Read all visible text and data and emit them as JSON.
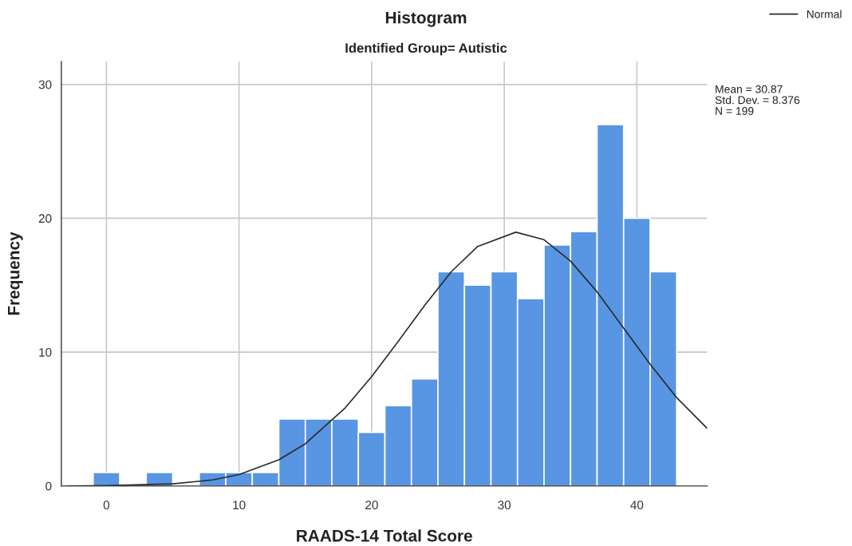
{
  "chart_data": {
    "type": "histogram",
    "title": "Histogram",
    "subtitle": "Identified Group= Autistic",
    "xlabel": "RAADS-14 Total Score",
    "ylabel": "Frequency",
    "bins": [
      -1,
      1,
      3,
      5,
      7,
      9,
      11,
      13,
      15,
      17,
      19,
      21,
      23,
      25,
      27,
      29,
      31,
      33,
      35,
      37,
      39,
      41,
      43
    ],
    "values": [
      1,
      0,
      1,
      0,
      1,
      1,
      1,
      5,
      5,
      5,
      4,
      6,
      8,
      16,
      15,
      16,
      14,
      18,
      19,
      27,
      20,
      16
    ],
    "color": "#5895e3",
    "series": [
      {
        "name": "Normal",
        "type": "line",
        "color": "#2b2b2b",
        "x": [
          -3,
          0,
          5,
          8,
          10,
          13,
          15,
          18,
          20,
          22,
          24,
          26,
          28,
          30.87,
          33,
          35,
          37,
          39,
          41,
          43,
          45.3
        ],
        "values": [
          0.0,
          0.02,
          0.16,
          0.45,
          0.85,
          1.95,
          3.15,
          5.83,
          8.17,
          10.8,
          13.5,
          16.0,
          17.9,
          18.96,
          18.4,
          16.8,
          14.5,
          11.8,
          9.1,
          6.6,
          4.3
        ]
      }
    ],
    "xlim": [
      -3.4,
      45.3
    ],
    "xticks": [
      0,
      10,
      20,
      30,
      40
    ],
    "ylim": [
      0,
      31.7
    ],
    "yticks": [
      0,
      10,
      20,
      30
    ],
    "grid": true,
    "legend": "top right",
    "annotations": [
      "Mean = 30.87",
      "Std. Dev. = 8.376",
      "N = 199"
    ]
  }
}
